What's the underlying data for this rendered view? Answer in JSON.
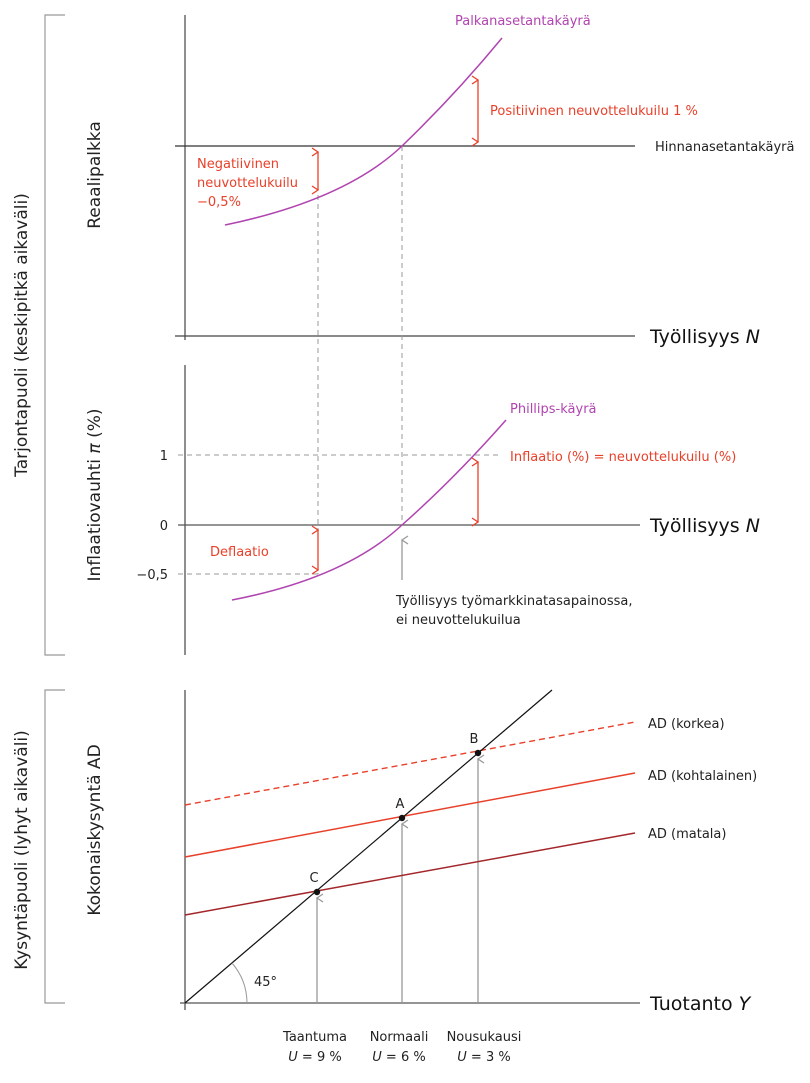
{
  "colors": {
    "wage_curve": "#b044b0",
    "gap_red": "#e8402a",
    "ad_low": "#a3262a",
    "guide_gray": "#999999"
  },
  "sections": {
    "supply": "Tarjontapuoli (keskipitkä aikaväli)",
    "demand": "Kysyntäpuoli (lyhyt aikaväli)"
  },
  "top": {
    "ylabel": "Reaalipalkka",
    "xlabel": "Työllisyys ",
    "xlabel_var": "N",
    "wage_curve": "Palkanasetantakäyrä",
    "price_curve": "Hinnanasetantakäyrä",
    "positive_gap": "Positiivinen neuvottelukuilu 1 %",
    "negative_gap": [
      "Negatiivinen",
      "neuvottelukuilu",
      "−0,5%"
    ]
  },
  "middle": {
    "ylabel": "Inflaatiovauhti ",
    "ylabel_var": "π",
    "ylabel_unit": " (%)",
    "xlabel": "Työllisyys ",
    "xlabel_var": "N",
    "ticks": [
      "1",
      "0",
      "−0,5"
    ],
    "phillips": "Phillips-käyrä",
    "inflation_note": "Inflaatio (%) = neuvottelukuilu (%)",
    "deflation": "Deflaatio",
    "equilibrium_note": [
      "Työllisyys työmarkkinatasapainossa,",
      "ei neuvottelukuilua"
    ]
  },
  "bottom": {
    "ylabel": "Kokonaiskysyntä AD",
    "xlabel": "Tuotanto ",
    "xlabel_var": "Y",
    "angle": "45°",
    "ad_lines": [
      "AD (korkea)",
      "AD (kohtalainen)",
      "AD (matala)"
    ],
    "points": [
      "B",
      "A",
      "C"
    ],
    "states": [
      {
        "name": "Taantuma",
        "u": "U",
        "rate": " = 9 %"
      },
      {
        "name": "Normaali",
        "u": "U",
        "rate": " = 6 %"
      },
      {
        "name": "Nousukausi",
        "u": "U",
        "rate": " = 3 %"
      }
    ]
  }
}
